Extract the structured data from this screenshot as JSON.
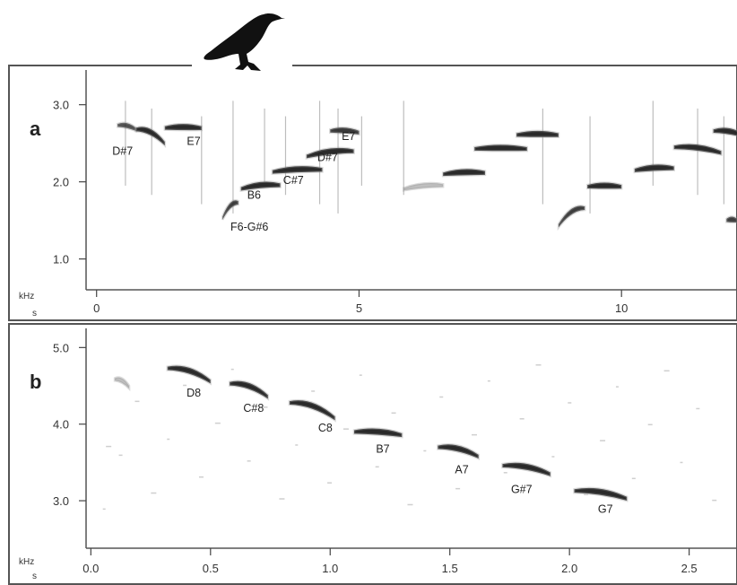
{
  "chart_data": [
    {
      "type": "scatter",
      "panel_label": "a",
      "x_unit": "s",
      "y_unit": "kHz",
      "xlim": [
        -0.2,
        12.2
      ],
      "ylim": [
        0.6,
        3.45
      ],
      "xticks": [
        0,
        5,
        10
      ],
      "yticks": [
        1.0,
        2.0,
        3.0
      ],
      "tick_labels_x": [
        "0",
        "5",
        "10"
      ],
      "tick_labels_y": [
        "1.0",
        "2.0",
        "3.0"
      ],
      "syllables": [
        {
          "t_start": 0.4,
          "t_end": 0.75,
          "f_start": 2.75,
          "f_end": 2.7,
          "weight": 0.6
        },
        {
          "t_start": 0.75,
          "t_end": 1.3,
          "f_start": 2.7,
          "f_end": 2.52,
          "weight": 1
        },
        {
          "t_start": 1.3,
          "t_end": 2.0,
          "f_start": 2.72,
          "f_end": 2.72,
          "weight": 1
        },
        {
          "t_start": 2.4,
          "t_end": 2.7,
          "f_start": 1.55,
          "f_end": 1.75,
          "weight": 0.8
        },
        {
          "t_start": 2.75,
          "t_end": 3.5,
          "f_start": 1.93,
          "f_end": 1.98,
          "weight": 1
        },
        {
          "t_start": 3.35,
          "t_end": 4.3,
          "f_start": 2.15,
          "f_end": 2.18,
          "weight": 1
        },
        {
          "t_start": 4.0,
          "t_end": 4.9,
          "f_start": 2.35,
          "f_end": 2.42,
          "weight": 1
        },
        {
          "t_start": 4.45,
          "t_end": 5.0,
          "f_start": 2.68,
          "f_end": 2.66,
          "weight": 0.85
        },
        {
          "t_start": 5.85,
          "t_end": 6.6,
          "f_start": 1.92,
          "f_end": 1.97,
          "weight": 0.35
        },
        {
          "t_start": 6.6,
          "t_end": 7.4,
          "f_start": 2.12,
          "f_end": 2.14,
          "weight": 1
        },
        {
          "t_start": 7.2,
          "t_end": 8.2,
          "f_start": 2.45,
          "f_end": 2.45,
          "weight": 1
        },
        {
          "t_start": 8.0,
          "t_end": 8.8,
          "f_start": 2.63,
          "f_end": 2.63,
          "weight": 1
        },
        {
          "t_start": 8.8,
          "t_end": 9.3,
          "f_start": 1.45,
          "f_end": 1.68,
          "weight": 0.8
        },
        {
          "t_start": 9.35,
          "t_end": 10.0,
          "f_start": 1.96,
          "f_end": 1.96,
          "weight": 1
        },
        {
          "t_start": 10.25,
          "t_end": 11.0,
          "f_start": 2.17,
          "f_end": 2.2,
          "weight": 1
        },
        {
          "t_start": 11.0,
          "t_end": 11.9,
          "f_start": 2.47,
          "f_end": 2.4,
          "weight": 1
        },
        {
          "t_start": 11.75,
          "t_end": 12.3,
          "f_start": 2.68,
          "f_end": 2.63,
          "weight": 1
        },
        {
          "t_start": 12.0,
          "t_end": 12.2,
          "f_start": 1.52,
          "f_end": 1.52,
          "weight": 0.8
        }
      ],
      "annotations": [
        {
          "text": "D#7",
          "t": 0.3,
          "f": 2.35,
          "anchor": "start"
        },
        {
          "text": "E7",
          "t": 1.85,
          "f": 2.48,
          "anchor": "middle"
        },
        {
          "text": "B6",
          "t": 3.0,
          "f": 1.78,
          "anchor": "middle"
        },
        {
          "text": "F6-G#6",
          "t": 2.55,
          "f": 1.37,
          "anchor": "start"
        },
        {
          "text": "C#7",
          "t": 3.75,
          "f": 1.97,
          "anchor": "middle"
        },
        {
          "text": "D#7",
          "t": 4.4,
          "f": 2.27,
          "anchor": "middle"
        },
        {
          "text": "E7",
          "t": 4.8,
          "f": 2.54,
          "anchor": "middle"
        }
      ]
    },
    {
      "type": "scatter",
      "panel_label": "b",
      "x_unit": "s",
      "y_unit": "kHz",
      "xlim": [
        -0.02,
        2.7
      ],
      "ylim": [
        2.38,
        5.25
      ],
      "xticks": [
        0.0,
        0.5,
        1.0,
        1.5,
        2.0,
        2.5
      ],
      "yticks": [
        3.0,
        4.0,
        5.0
      ],
      "tick_labels_x": [
        "0.0",
        "0.5",
        "1.0",
        "1.5",
        "2.0",
        "2.5"
      ],
      "tick_labels_y": [
        "3.0",
        "4.0",
        "5.0"
      ],
      "syllables": [
        {
          "t_start": 0.1,
          "t_end": 0.16,
          "f_start": 4.6,
          "f_end": 4.5,
          "weight": 0.4
        },
        {
          "t_start": 0.32,
          "t_end": 0.5,
          "f_start": 4.75,
          "f_end": 4.58,
          "weight": 1
        },
        {
          "t_start": 0.58,
          "t_end": 0.74,
          "f_start": 4.55,
          "f_end": 4.38,
          "weight": 1
        },
        {
          "t_start": 0.83,
          "t_end": 1.02,
          "f_start": 4.3,
          "f_end": 4.1,
          "weight": 1
        },
        {
          "t_start": 1.1,
          "t_end": 1.3,
          "f_start": 3.92,
          "f_end": 3.88,
          "weight": 1
        },
        {
          "t_start": 1.45,
          "t_end": 1.62,
          "f_start": 3.72,
          "f_end": 3.6,
          "weight": 1
        },
        {
          "t_start": 1.72,
          "t_end": 1.92,
          "f_start": 3.48,
          "f_end": 3.37,
          "weight": 1
        },
        {
          "t_start": 2.02,
          "t_end": 2.24,
          "f_start": 3.15,
          "f_end": 3.05,
          "weight": 1
        }
      ],
      "annotations": [
        {
          "text": "D8",
          "t": 0.43,
          "f": 4.36,
          "anchor": "middle"
        },
        {
          "text": "C#8",
          "t": 0.68,
          "f": 4.16,
          "anchor": "middle"
        },
        {
          "text": "C8",
          "t": 0.98,
          "f": 3.9,
          "anchor": "middle"
        },
        {
          "text": "B7",
          "t": 1.22,
          "f": 3.63,
          "anchor": "middle"
        },
        {
          "text": "A7",
          "t": 1.55,
          "f": 3.36,
          "anchor": "middle"
        },
        {
          "text": "G#7",
          "t": 1.8,
          "f": 3.1,
          "anchor": "middle"
        },
        {
          "text": "G7",
          "t": 2.15,
          "f": 2.84,
          "anchor": "middle"
        }
      ]
    }
  ],
  "bird_icon": "crow-silhouette-icon",
  "colors": {
    "frame": "#555555",
    "syllable": "#2a2a2a",
    "background": "#ffffff"
  }
}
